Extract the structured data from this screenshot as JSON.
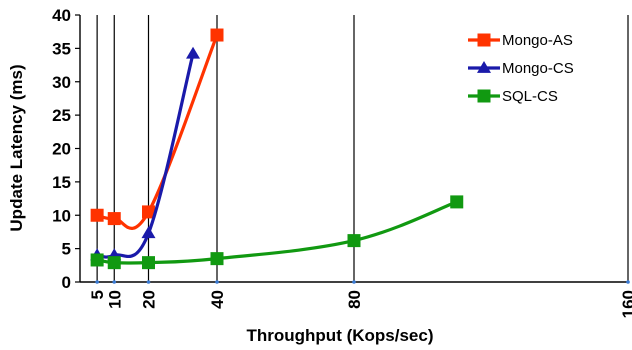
{
  "chart_data": {
    "type": "line",
    "xlabel": "Throughput (Kops/sec)",
    "ylabel": "Update Latency (ms)",
    "xlim": [
      0,
      160
    ],
    "ylim": [
      0,
      40
    ],
    "y_ticks": [
      "0",
      "5",
      "10",
      "15",
      "20",
      "25",
      "30",
      "35",
      "40"
    ],
    "x_ticks": [
      "5",
      "10",
      "20",
      "40",
      "80",
      "160"
    ],
    "x_tick_values": [
      5,
      10,
      20,
      40,
      80,
      160
    ],
    "grid": "vertical lines at x ticks",
    "legend_position": "top-right",
    "series": [
      {
        "name": "Mongo-AS",
        "color": "#ff3300",
        "marker": "square",
        "points": [
          [
            5,
            10.0
          ],
          [
            10,
            9.5
          ],
          [
            20,
            10.5
          ],
          [
            40,
            37.0
          ]
        ]
      },
      {
        "name": "Mongo-CS",
        "color": "#1a1aaa",
        "marker": "triangle",
        "points": [
          [
            5,
            4.0
          ],
          [
            10,
            4.0
          ],
          [
            20,
            7.3
          ],
          [
            33,
            34.2
          ]
        ]
      },
      {
        "name": "SQL-CS",
        "color": "#119911",
        "marker": "square",
        "points": [
          [
            5,
            3.3
          ],
          [
            10,
            2.9
          ],
          [
            20,
            2.9
          ],
          [
            40,
            3.5
          ],
          [
            80,
            6.2
          ],
          [
            110,
            12.0
          ]
        ]
      }
    ]
  }
}
